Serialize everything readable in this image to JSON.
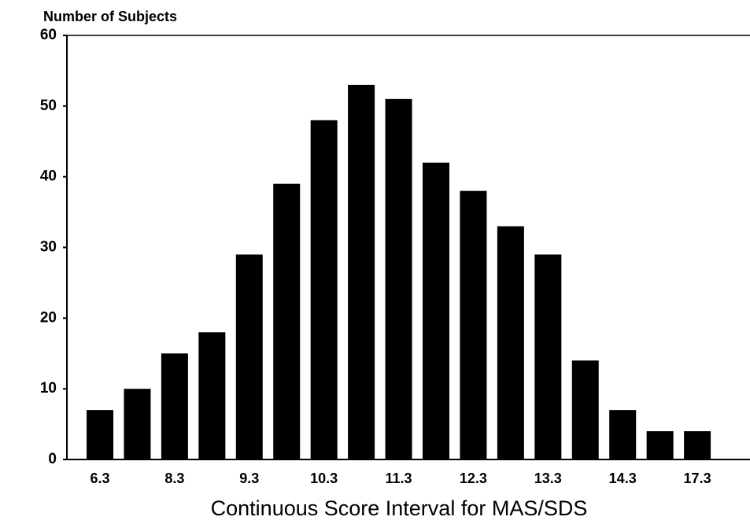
{
  "chart_data": {
    "type": "bar",
    "y_axis_label": "Number of Subjects",
    "x_axis_label": "Continuous Score Interval for MAS/SDS",
    "categories": [
      "6.3",
      null,
      "8.3",
      null,
      "9.3",
      null,
      "10.3",
      null,
      "11.3",
      null,
      "12.3",
      null,
      "13.3",
      null,
      "14.3",
      null,
      "17.3"
    ],
    "values": [
      7,
      10,
      15,
      18,
      29,
      39,
      48,
      53,
      51,
      42,
      38,
      33,
      29,
      14,
      7,
      4,
      4
    ],
    "color": "#000000",
    "ylim": [
      0,
      60
    ],
    "yticks": [
      0,
      10,
      20,
      30,
      40,
      50,
      60
    ],
    "grid": false
  }
}
